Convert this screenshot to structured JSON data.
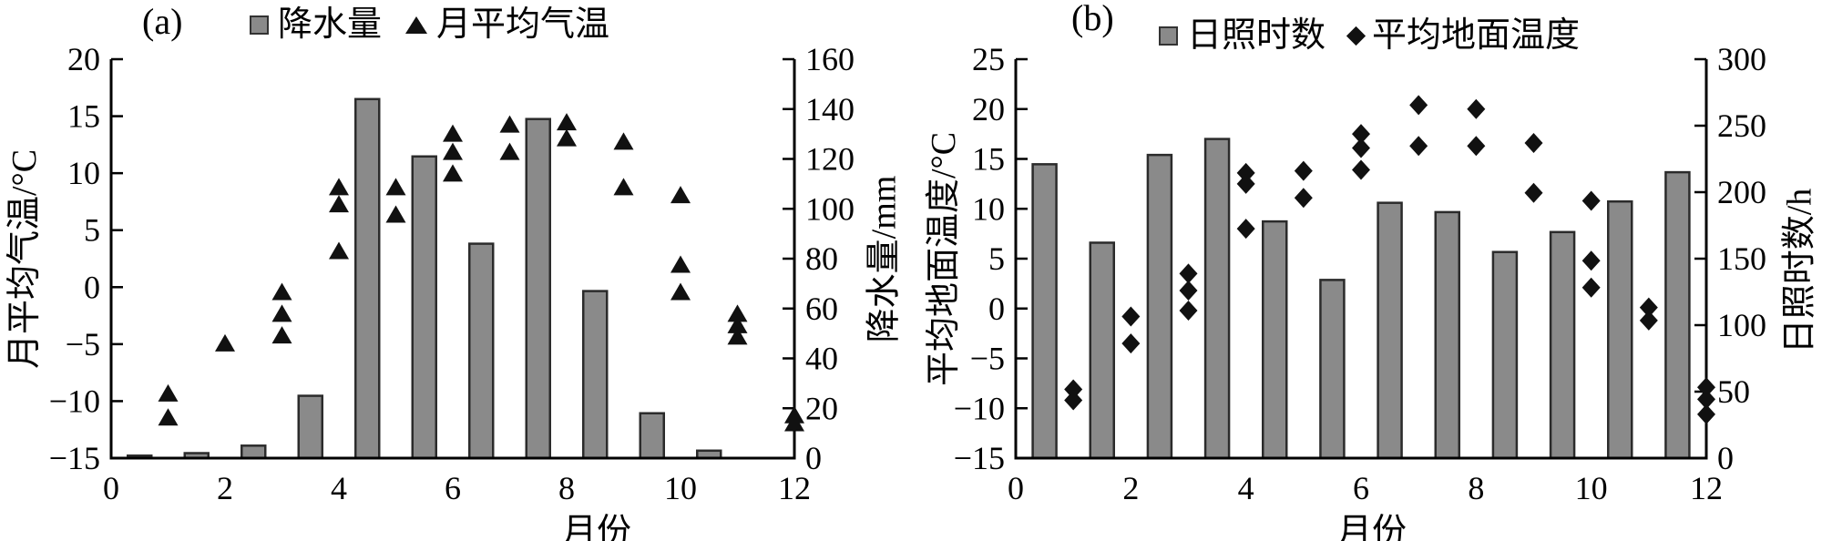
{
  "page": {
    "background": "#ffffff"
  },
  "colors": {
    "bar_fill": "#8a8a8a",
    "bar_stroke": "#2b2b2b",
    "marker": "#111111",
    "axis": "#000000",
    "text": "#000000"
  },
  "chart_data": [
    {
      "type": "bar+scatter",
      "panel_label": "(a)",
      "legend": [
        {
          "marker": "square",
          "label": "降水量"
        },
        {
          "marker": "triangle",
          "label": "月平均气温"
        }
      ],
      "x_axis": {
        "label": "月份",
        "min": 0,
        "max": 12,
        "step": 2
      },
      "left_axis": {
        "label": "月平均气温/°C",
        "min": -15,
        "max": 20,
        "step": 5
      },
      "right_axis": {
        "label": "降水量/mm",
        "min": 0,
        "max": 160,
        "step": 20
      },
      "months": [
        1,
        2,
        3,
        4,
        5,
        6,
        7,
        8,
        9,
        10,
        11,
        12
      ],
      "series": [
        {
          "name": "降水量",
          "type": "bar",
          "axis": "right",
          "unit": "mm",
          "values": [
            1,
            2,
            5,
            25,
            144,
            121,
            86,
            136,
            67,
            18,
            3,
            0
          ]
        },
        {
          "name": "月平均气温",
          "type": "scatter",
          "axis": "left",
          "marker": "triangle",
          "unit": "°C",
          "points": [
            {
              "month": 1,
              "values": [
                -9.4,
                -11.5
              ]
            },
            {
              "month": 2,
              "values": [
                -5.0
              ]
            },
            {
              "month": 3,
              "values": [
                -0.5,
                -2.4,
                -4.3
              ]
            },
            {
              "month": 4,
              "values": [
                8.7,
                7.2,
                3.1
              ]
            },
            {
              "month": 5,
              "values": [
                8.7,
                6.3
              ]
            },
            {
              "month": 6,
              "values": [
                13.4,
                11.8,
                9.9
              ]
            },
            {
              "month": 7,
              "values": [
                14.2,
                11.8
              ]
            },
            {
              "month": 8,
              "values": [
                14.4,
                13.0
              ]
            },
            {
              "month": 9,
              "values": [
                12.7,
                8.7
              ]
            },
            {
              "month": 10,
              "values": [
                8.0,
                1.9,
                -0.5
              ]
            },
            {
              "month": 11,
              "values": [
                -2.4,
                -3.4,
                -4.4
              ]
            },
            {
              "month": 12,
              "values": [
                -11.3,
                -12.0
              ]
            }
          ]
        }
      ]
    },
    {
      "type": "bar+scatter",
      "panel_label": "(b)",
      "legend": [
        {
          "marker": "square",
          "label": "日照时数"
        },
        {
          "marker": "diamond",
          "label": "平均地面温度"
        }
      ],
      "x_axis": {
        "label": "月份",
        "min": 0,
        "max": 12,
        "step": 2
      },
      "left_axis": {
        "label": "平均地面温度/°C",
        "min": -15,
        "max": 25,
        "step": 5
      },
      "right_axis": {
        "label": "日照时数/h",
        "min": 0,
        "max": 300,
        "step": 50
      },
      "months": [
        1,
        2,
        3,
        4,
        5,
        6,
        7,
        8,
        9,
        10,
        11,
        12
      ],
      "series": [
        {
          "name": "日照时数",
          "type": "bar",
          "axis": "right",
          "unit": "h",
          "values": [
            221,
            162,
            228,
            240,
            178,
            134,
            192,
            185,
            155,
            170,
            193,
            215
          ]
        },
        {
          "name": "平均地面温度",
          "type": "scatter",
          "axis": "left",
          "marker": "diamond",
          "unit": "°C",
          "points": [
            {
              "month": 1,
              "values": [
                -8.1,
                -9.2
              ]
            },
            {
              "month": 2,
              "values": [
                -0.8,
                -3.5
              ]
            },
            {
              "month": 3,
              "values": [
                3.5,
                1.8,
                -0.2
              ]
            },
            {
              "month": 4,
              "values": [
                13.6,
                12.5,
                8.0
              ]
            },
            {
              "month": 5,
              "values": [
                13.8,
                11.1
              ]
            },
            {
              "month": 6,
              "values": [
                17.5,
                16.1,
                13.9
              ]
            },
            {
              "month": 7,
              "values": [
                20.4,
                16.3
              ]
            },
            {
              "month": 8,
              "values": [
                20.0,
                16.3
              ]
            },
            {
              "month": 9,
              "values": [
                16.6,
                11.6
              ]
            },
            {
              "month": 10,
              "values": [
                10.8,
                4.8,
                2.1
              ]
            },
            {
              "month": 11,
              "values": [
                0.1,
                -1.2
              ]
            },
            {
              "month": 12,
              "values": [
                -7.9,
                -9.1,
                -10.6
              ]
            }
          ]
        }
      ]
    }
  ]
}
